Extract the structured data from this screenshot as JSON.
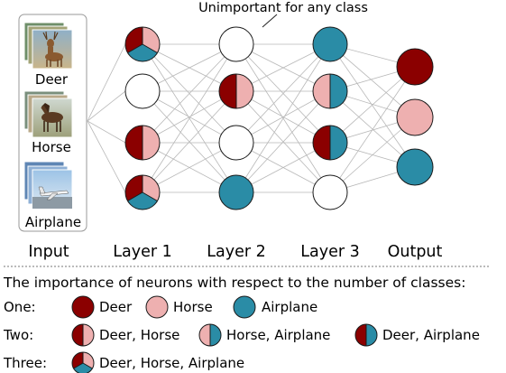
{
  "colors": {
    "deer": "#8b0000",
    "horse": "#eeb0b0",
    "airplane": "#2a8ca6",
    "empty": "#ffffff",
    "edge": "#b8b8b8",
    "stroke": "#1a1a1a"
  },
  "annotation": "Unimportant for any class",
  "input": {
    "label": "Input",
    "images": [
      {
        "label": "Deer",
        "icon": "deer-photo-stack"
      },
      {
        "label": "Horse",
        "icon": "horse-photo-stack"
      },
      {
        "label": "Airplane",
        "icon": "airplane-photo-stack"
      }
    ]
  },
  "layers": [
    {
      "label": "Layer 1",
      "neurons": [
        "deer,horse,airplane",
        "none",
        "deer,horse",
        "deer,horse,airplane"
      ]
    },
    {
      "label": "Layer 2",
      "neurons": [
        "none",
        "deer,horse",
        "none",
        "airplane"
      ]
    },
    {
      "label": "Layer 3",
      "neurons": [
        "airplane",
        "horse,airplane",
        "deer,airplane",
        "none"
      ]
    }
  ],
  "output": {
    "label": "Output",
    "neurons": [
      "deer",
      "horse",
      "airplane"
    ]
  },
  "legend": {
    "title": "The importance of neurons with respect to the number of classes:",
    "rows": [
      {
        "label": "One:",
        "entries": [
          {
            "classes": "deer",
            "text": "Deer"
          },
          {
            "classes": "horse",
            "text": "Horse"
          },
          {
            "classes": "airplane",
            "text": "Airplane"
          }
        ]
      },
      {
        "label": "Two:",
        "entries": [
          {
            "classes": "deer,horse",
            "text": "Deer, Horse"
          },
          {
            "classes": "horse,airplane",
            "text": "Horse, Airplane"
          },
          {
            "classes": "deer,airplane",
            "text": "Deer, Airplane"
          }
        ]
      },
      {
        "label": "Three:",
        "entries": [
          {
            "classes": "deer,horse,airplane",
            "text": "Deer, Horse, Airplane"
          }
        ]
      }
    ]
  }
}
